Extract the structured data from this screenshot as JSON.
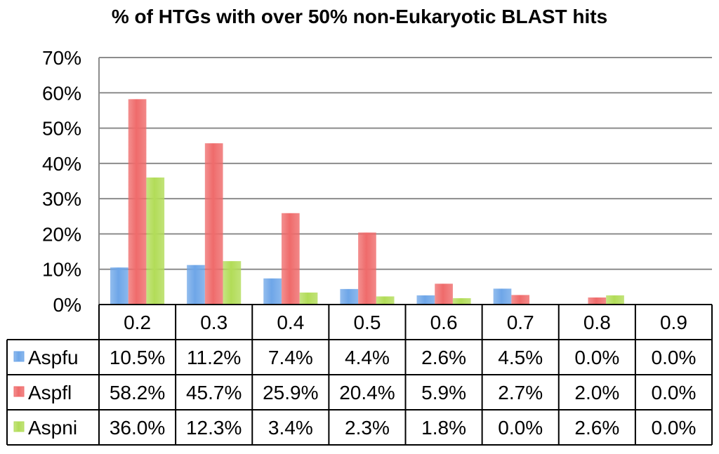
{
  "chart_data": {
    "type": "bar",
    "title": "% of HTGs with over 50% non-Eukaryotic BLAST hits",
    "categories": [
      "0.2",
      "0.3",
      "0.4",
      "0.5",
      "0.6",
      "0.7",
      "0.8",
      "0.9"
    ],
    "y_ticks": [
      "0%",
      "10%",
      "20%",
      "30%",
      "40%",
      "50%",
      "60%",
      "70%"
    ],
    "ylim": [
      0,
      70
    ],
    "grid": true,
    "legend": "data-table",
    "series": [
      {
        "name": "Aspfu",
        "color": "#6ea6e8",
        "values": [
          10.5,
          11.2,
          7.4,
          4.4,
          2.6,
          4.5,
          0.0,
          0.0
        ],
        "labels": [
          "10.5%",
          "11.2%",
          "7.4%",
          "4.4%",
          "2.6%",
          "4.5%",
          "0.0%",
          "0.0%"
        ]
      },
      {
        "name": "Aspfl",
        "color": "#ef6b6b",
        "values": [
          58.2,
          45.7,
          25.9,
          20.4,
          5.9,
          2.7,
          2.0,
          0.0
        ],
        "labels": [
          "58.2%",
          "45.7%",
          "25.9%",
          "20.4%",
          "5.9%",
          "2.7%",
          "2.0%",
          "0.0%"
        ]
      },
      {
        "name": "Aspni",
        "color": "#b2dc58",
        "values": [
          36.0,
          12.3,
          3.4,
          2.3,
          1.8,
          0.0,
          2.6,
          0.0
        ],
        "labels": [
          "36.0%",
          "12.3%",
          "3.4%",
          "2.3%",
          "1.8%",
          "0.0%",
          "2.6%",
          "0.0%"
        ]
      }
    ]
  }
}
